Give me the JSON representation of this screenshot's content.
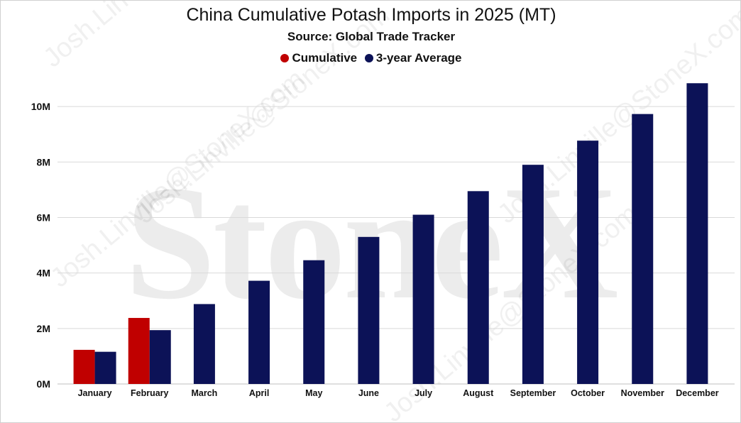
{
  "watermarks": {
    "brand": "StoneX",
    "diagonal": [
      "Josh.Linville@StoneX.com",
      "Josh.Linville@StoneX.com",
      "Josh.Linville@StoneX.com",
      "Josh.Linville@StoneX.com",
      "Josh.Linville@StoneX.com"
    ]
  },
  "chart_data": {
    "type": "bar",
    "title": "China Cumulative Potash Imports in 2025 (MT)",
    "subtitle": "Source: Global Trade Tracker",
    "xlabel": "",
    "ylabel": "",
    "ylim": [
      0,
      11000000
    ],
    "yticks": [
      0,
      2000000,
      4000000,
      6000000,
      8000000,
      10000000
    ],
    "ytick_labels": [
      "0M",
      "2M",
      "4M",
      "6M",
      "8M",
      "10M"
    ],
    "grid": true,
    "legend_position": "top-center",
    "categories": [
      "January",
      "February",
      "March",
      "April",
      "May",
      "June",
      "July",
      "August",
      "September",
      "October",
      "November",
      "December"
    ],
    "series": [
      {
        "name": "Cumulative",
        "color": "#c00000",
        "values": [
          1230000,
          2380000,
          null,
          null,
          null,
          null,
          null,
          null,
          null,
          null,
          null,
          null
        ]
      },
      {
        "name": "3-year Average",
        "color": "#0c1257",
        "values": [
          1160000,
          1940000,
          2880000,
          3720000,
          4460000,
          5300000,
          6100000,
          6950000,
          7900000,
          8770000,
          9730000,
          10840000
        ]
      }
    ]
  }
}
